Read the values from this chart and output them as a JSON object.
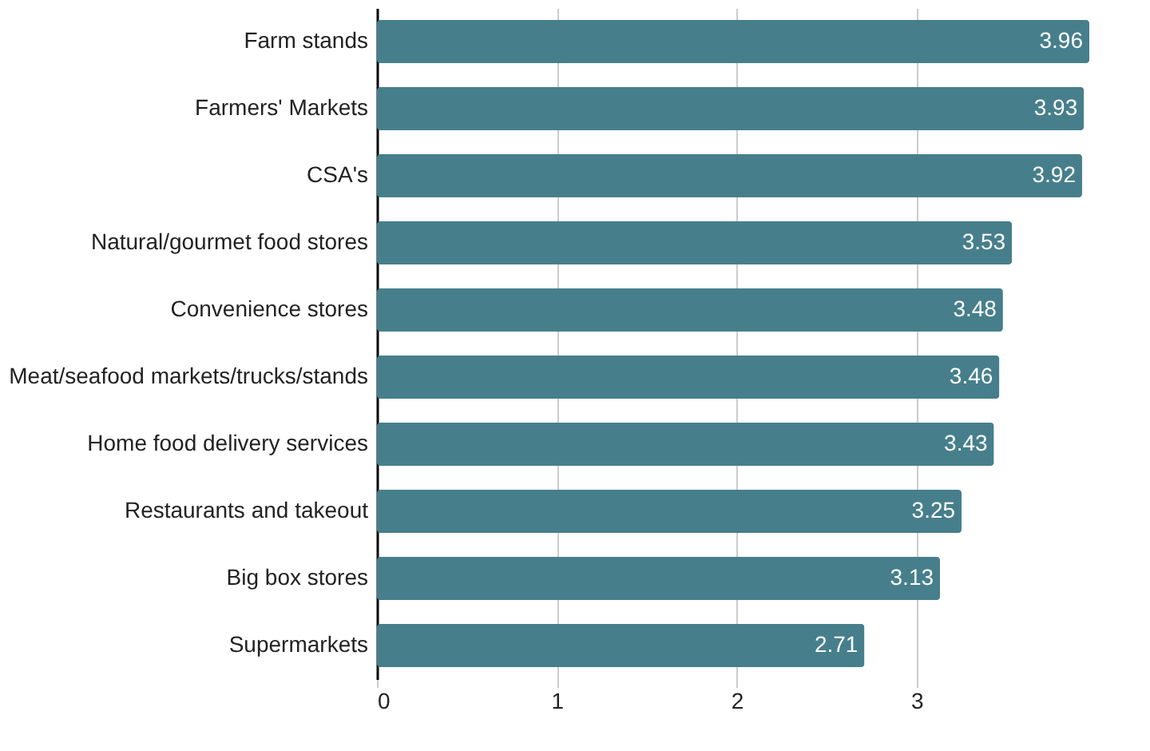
{
  "chart_data": {
    "type": "bar",
    "orientation": "horizontal",
    "categories": [
      "Farm stands",
      "Farmers' Markets",
      "CSA's",
      "Natural/gourmet food stores",
      "Convenience stores",
      "Meat/seafood markets/trucks/stands",
      "Home food delivery services",
      "Restaurants and takeout",
      "Big box stores",
      "Supermarkets"
    ],
    "values": [
      3.96,
      3.93,
      3.92,
      3.53,
      3.48,
      3.46,
      3.43,
      3.25,
      3.13,
      2.71
    ],
    "color": "#467f8b",
    "xlim": [
      0,
      3.96
    ],
    "xticks": [
      0,
      1,
      2,
      3
    ],
    "grid": "x",
    "data_labels": true
  }
}
